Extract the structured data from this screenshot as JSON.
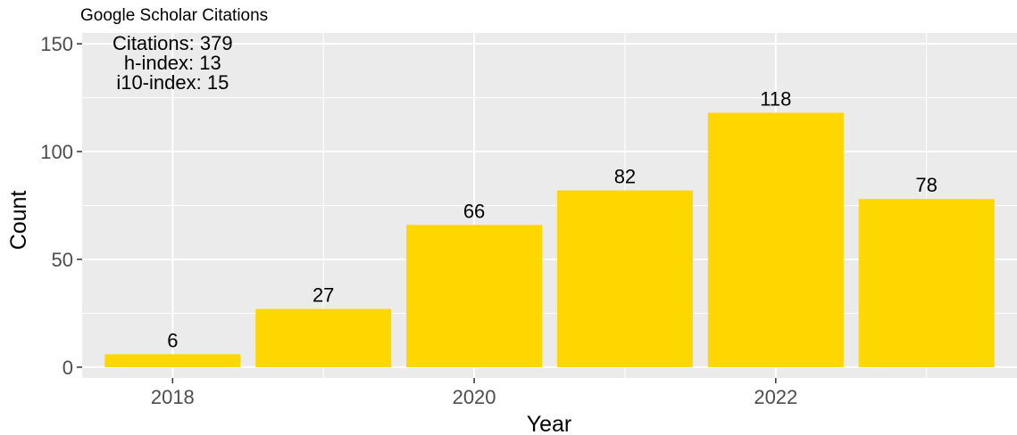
{
  "chart_data": {
    "type": "bar",
    "title": "Google Scholar Citations",
    "xlabel": "Year",
    "ylabel": "Count",
    "categories": [
      2018,
      2019,
      2020,
      2021,
      2022,
      2023
    ],
    "values": [
      6,
      27,
      66,
      82,
      118,
      78
    ],
    "x_ticks": [
      "2018",
      "2020",
      "2022"
    ],
    "y_ticks": [
      "0",
      "50",
      "100",
      "150"
    ],
    "ylim": [
      -5,
      155
    ],
    "xlim": [
      2017.4,
      2023.6
    ],
    "grid": true,
    "legend": "none",
    "bar_color": "#FFD700",
    "panel_color": "#EBEBEB",
    "annotation": {
      "lines": [
        "Citations: 379",
        "h-index: 13",
        "i10-index: 15"
      ],
      "x": 2018,
      "y_top": 150
    }
  }
}
